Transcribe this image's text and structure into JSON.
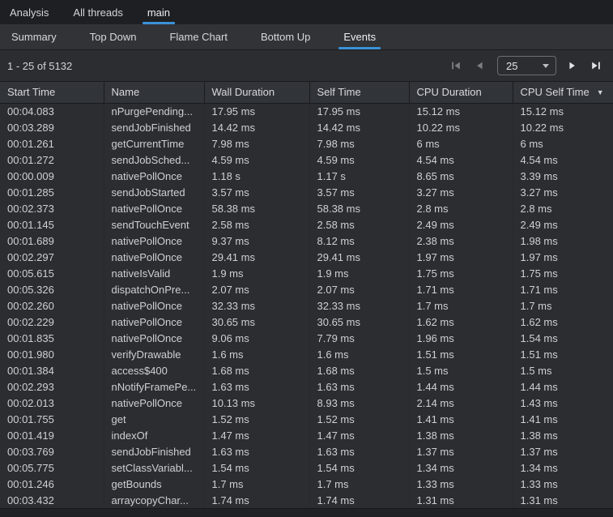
{
  "colors": {
    "accent": "#3b92d8",
    "panel_bg": "#2b2d30",
    "window_bg": "#1e1f22",
    "strip_bg": "#313337"
  },
  "top_tabs": {
    "items": [
      {
        "label": "Analysis",
        "active": false
      },
      {
        "label": "All threads",
        "active": false
      },
      {
        "label": "main",
        "active": true
      }
    ]
  },
  "view_tabs": {
    "items": [
      {
        "label": "Summary",
        "active": false
      },
      {
        "label": "Top Down",
        "active": false
      },
      {
        "label": "Flame Chart",
        "active": false
      },
      {
        "label": "Bottom Up",
        "active": false
      },
      {
        "label": "Events",
        "active": true
      }
    ]
  },
  "pagination": {
    "range_label": "1 - 25 of 5132",
    "page_size_value": "25",
    "first_disabled": true,
    "prev_disabled": true,
    "next_disabled": false,
    "last_disabled": false
  },
  "table": {
    "columns": [
      {
        "label": "Start Time",
        "sort": null
      },
      {
        "label": "Name",
        "sort": null
      },
      {
        "label": "Wall Duration",
        "sort": null
      },
      {
        "label": "Self Time",
        "sort": null
      },
      {
        "label": "CPU Duration",
        "sort": null
      },
      {
        "label": "CPU Self Time",
        "sort": "desc"
      }
    ],
    "rows": [
      [
        "00:04.083",
        "nPurgePending...",
        "17.95 ms",
        "17.95 ms",
        "15.12 ms",
        "15.12 ms"
      ],
      [
        "00:03.289",
        "sendJobFinished",
        "14.42 ms",
        "14.42 ms",
        "10.22 ms",
        "10.22 ms"
      ],
      [
        "00:01.261",
        "getCurrentTime",
        "7.98 ms",
        "7.98 ms",
        "6 ms",
        "6 ms"
      ],
      [
        "00:01.272",
        "sendJobSched...",
        "4.59 ms",
        "4.59 ms",
        "4.54 ms",
        "4.54 ms"
      ],
      [
        "00:00.009",
        "nativePollOnce",
        "1.18 s",
        "1.17 s",
        "8.65 ms",
        "3.39 ms"
      ],
      [
        "00:01.285",
        "sendJobStarted",
        "3.57 ms",
        "3.57 ms",
        "3.27 ms",
        "3.27 ms"
      ],
      [
        "00:02.373",
        "nativePollOnce",
        "58.38 ms",
        "58.38 ms",
        "2.8 ms",
        "2.8 ms"
      ],
      [
        "00:01.145",
        "sendTouchEvent",
        "2.58 ms",
        "2.58 ms",
        "2.49 ms",
        "2.49 ms"
      ],
      [
        "00:01.689",
        "nativePollOnce",
        "9.37 ms",
        "8.12 ms",
        "2.38 ms",
        "1.98 ms"
      ],
      [
        "00:02.297",
        "nativePollOnce",
        "29.41 ms",
        "29.41 ms",
        "1.97 ms",
        "1.97 ms"
      ],
      [
        "00:05.615",
        "nativeIsValid",
        "1.9 ms",
        "1.9 ms",
        "1.75 ms",
        "1.75 ms"
      ],
      [
        "00:05.326",
        "dispatchOnPre...",
        "2.07 ms",
        "2.07 ms",
        "1.71 ms",
        "1.71 ms"
      ],
      [
        "00:02.260",
        "nativePollOnce",
        "32.33 ms",
        "32.33 ms",
        "1.7 ms",
        "1.7 ms"
      ],
      [
        "00:02.229",
        "nativePollOnce",
        "30.65 ms",
        "30.65 ms",
        "1.62 ms",
        "1.62 ms"
      ],
      [
        "00:01.835",
        "nativePollOnce",
        "9.06 ms",
        "7.79 ms",
        "1.96 ms",
        "1.54 ms"
      ],
      [
        "00:01.980",
        "verifyDrawable",
        "1.6 ms",
        "1.6 ms",
        "1.51 ms",
        "1.51 ms"
      ],
      [
        "00:01.384",
        "access$400",
        "1.68 ms",
        "1.68 ms",
        "1.5 ms",
        "1.5 ms"
      ],
      [
        "00:02.293",
        "nNotifyFramePe...",
        "1.63 ms",
        "1.63 ms",
        "1.44 ms",
        "1.44 ms"
      ],
      [
        "00:02.013",
        "nativePollOnce",
        "10.13 ms",
        "8.93 ms",
        "2.14 ms",
        "1.43 ms"
      ],
      [
        "00:01.755",
        "get",
        "1.52 ms",
        "1.52 ms",
        "1.41 ms",
        "1.41 ms"
      ],
      [
        "00:01.419",
        "indexOf",
        "1.47 ms",
        "1.47 ms",
        "1.38 ms",
        "1.38 ms"
      ],
      [
        "00:03.769",
        "sendJobFinished",
        "1.63 ms",
        "1.63 ms",
        "1.37 ms",
        "1.37 ms"
      ],
      [
        "00:05.775",
        "setClassVariabl...",
        "1.54 ms",
        "1.54 ms",
        "1.34 ms",
        "1.34 ms"
      ],
      [
        "00:01.246",
        "getBounds",
        "1.7 ms",
        "1.7 ms",
        "1.33 ms",
        "1.33 ms"
      ],
      [
        "00:03.432",
        "arraycopyChar...",
        "1.74 ms",
        "1.74 ms",
        "1.31 ms",
        "1.31 ms"
      ]
    ]
  }
}
